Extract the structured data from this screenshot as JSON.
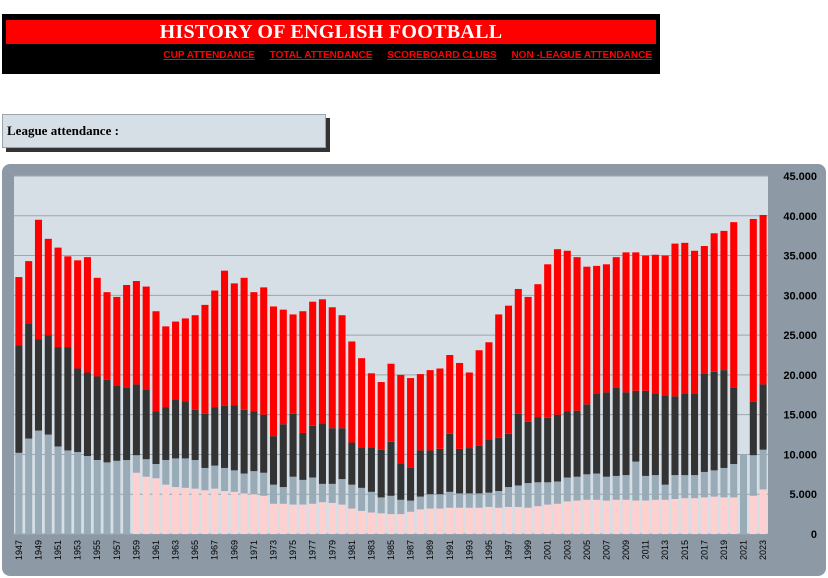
{
  "header": {
    "title": "HISTORY OF ENGLISH FOOTBALL",
    "nav": [
      {
        "label": "CUP ATTENDANCE"
      },
      {
        "label": "TOTAL ATTENDANCE"
      },
      {
        "label": "SCOREBOARD CLUBS"
      },
      {
        "label": "NON -LEAGUE ATTENDANCE"
      }
    ]
  },
  "section": {
    "label": "League attendance :"
  },
  "colors": {
    "top": "#ff0000",
    "mid": "#333333",
    "low": "#9aabb8",
    "base": "#ffd0d0",
    "plot_bg": "#d6dee6",
    "frame": "#8d9aa6"
  },
  "chart_data": {
    "type": "bar",
    "stacked": true,
    "y_tick_labels": [
      "45.000",
      "40.000",
      "35.000",
      "30.000",
      "25.000",
      "20.000",
      "15.000",
      "10.000",
      "5.000",
      "0"
    ],
    "ylim": [
      0,
      45000
    ],
    "x_tick_labels": [
      "1947",
      "1949",
      "1951",
      "1953",
      "1955",
      "1957",
      "1959",
      "1961",
      "1963",
      "1965",
      "1967",
      "1969",
      "1971",
      "1973",
      "1975",
      "1977",
      "1979",
      "1981",
      "1983",
      "1985",
      "1987",
      "1989",
      "1991",
      "1993",
      "1995",
      "1997",
      "1999",
      "2001",
      "2003",
      "2005",
      "2007",
      "2009",
      "2011",
      "2013",
      "2015",
      "2017",
      "2019",
      "2021",
      "2023"
    ],
    "grid": true,
    "x": [
      1947,
      1948,
      1949,
      1950,
      1951,
      1952,
      1953,
      1954,
      1955,
      1956,
      1957,
      1958,
      1959,
      1960,
      1961,
      1962,
      1963,
      1964,
      1965,
      1966,
      1967,
      1968,
      1969,
      1970,
      1971,
      1972,
      1973,
      1974,
      1975,
      1976,
      1977,
      1978,
      1979,
      1980,
      1981,
      1982,
      1983,
      1984,
      1985,
      1986,
      1987,
      1988,
      1989,
      1990,
      1991,
      1992,
      1993,
      1994,
      1995,
      1996,
      1997,
      1998,
      1999,
      2000,
      2001,
      2002,
      2003,
      2004,
      2005,
      2006,
      2007,
      2008,
      2009,
      2010,
      2011,
      2012,
      2013,
      2014,
      2015,
      2016,
      2017,
      2018,
      2019,
      2020,
      2021,
      2022,
      2023
    ],
    "series": [
      {
        "key": "base",
        "values": [
          0,
          0,
          0,
          0,
          0,
          0,
          0,
          0,
          0,
          0,
          0,
          0,
          7700,
          7200,
          7000,
          6200,
          5900,
          5800,
          5700,
          5500,
          5700,
          5400,
          5300,
          5100,
          5000,
          4800,
          3800,
          3800,
          3700,
          3700,
          3800,
          4000,
          3900,
          3700,
          3200,
          2900,
          2700,
          2600,
          2500,
          2500,
          2800,
          3100,
          3200,
          3200,
          3300,
          3300,
          3300,
          3300,
          3400,
          3300,
          3400,
          3400,
          3300,
          3500,
          3700,
          3800,
          4100,
          4200,
          4300,
          4300,
          4200,
          4300,
          4300,
          4200,
          4200,
          4300,
          4300,
          4400,
          4500,
          4500,
          4600,
          4700,
          4600,
          4600,
          0,
          4800,
          5600
        ]
      },
      {
        "key": "low",
        "values": [
          10200,
          12000,
          13000,
          12500,
          11000,
          10500,
          10300,
          9800,
          9300,
          9000,
          9200,
          9300,
          2200,
          2200,
          1800,
          3100,
          3600,
          3700,
          3600,
          2800,
          2900,
          2900,
          2700,
          2500,
          2900,
          2900,
          2400,
          2100,
          3500,
          3100,
          3300,
          2300,
          2400,
          3200,
          3000,
          2900,
          2600,
          2000,
          2300,
          1800,
          1400,
          1600,
          1800,
          1800,
          2000,
          1800,
          1800,
          1800,
          1800,
          2100,
          2500,
          2700,
          3100,
          3000,
          2800,
          2800,
          3000,
          3000,
          3200,
          3300,
          3000,
          3000,
          3100,
          4900,
          3100,
          3100,
          1900,
          3000,
          2900,
          2900,
          3200,
          3300,
          3700,
          4200,
          10000,
          5100,
          5000
        ]
      },
      {
        "key": "mid",
        "values": [
          13500,
          14500,
          11500,
          12500,
          12500,
          13000,
          10500,
          10500,
          10500,
          10400,
          9500,
          9100,
          8900,
          8700,
          6600,
          6600,
          7400,
          7200,
          6300,
          6800,
          7300,
          7800,
          8200,
          8000,
          7500,
          7300,
          6100,
          7900,
          7900,
          5900,
          6500,
          7600,
          7000,
          6400,
          5300,
          5100,
          5600,
          6000,
          6800,
          4600,
          4100,
          5800,
          5500,
          5700,
          7300,
          5600,
          5700,
          6000,
          6700,
          6700,
          6700,
          9000,
          7700,
          8200,
          8100,
          8400,
          8300,
          8300,
          8800,
          10100,
          10600,
          11100,
          10400,
          8900,
          10700,
          10300,
          11200,
          9900,
          10200,
          10200,
          12400,
          12400,
          12300,
          9600,
          0,
          6700,
          8200
        ]
      },
      {
        "key": "top",
        "values": [
          8600,
          7800,
          15000,
          12100,
          12500,
          11400,
          13600,
          14500,
          12400,
          11000,
          11100,
          12900,
          13000,
          13000,
          12600,
          10200,
          9800,
          10400,
          11900,
          13700,
          14700,
          17000,
          15300,
          16600,
          15000,
          16000,
          16300,
          14400,
          12500,
          15300,
          15600,
          15600,
          15200,
          14200,
          12700,
          11200,
          9300,
          8500,
          9800,
          11100,
          11300,
          9600,
          10100,
          10100,
          9900,
          10800,
          9500,
          12000,
          12200,
          15500,
          16100,
          15700,
          15700,
          16700,
          19300,
          20800,
          20200,
          19300,
          17300,
          16000,
          16100,
          16400,
          17600,
          17400,
          17000,
          17400,
          17600,
          19200,
          19000,
          18000,
          16000,
          17400,
          17500,
          20800,
          0,
          23000,
          21300
        ]
      }
    ]
  }
}
